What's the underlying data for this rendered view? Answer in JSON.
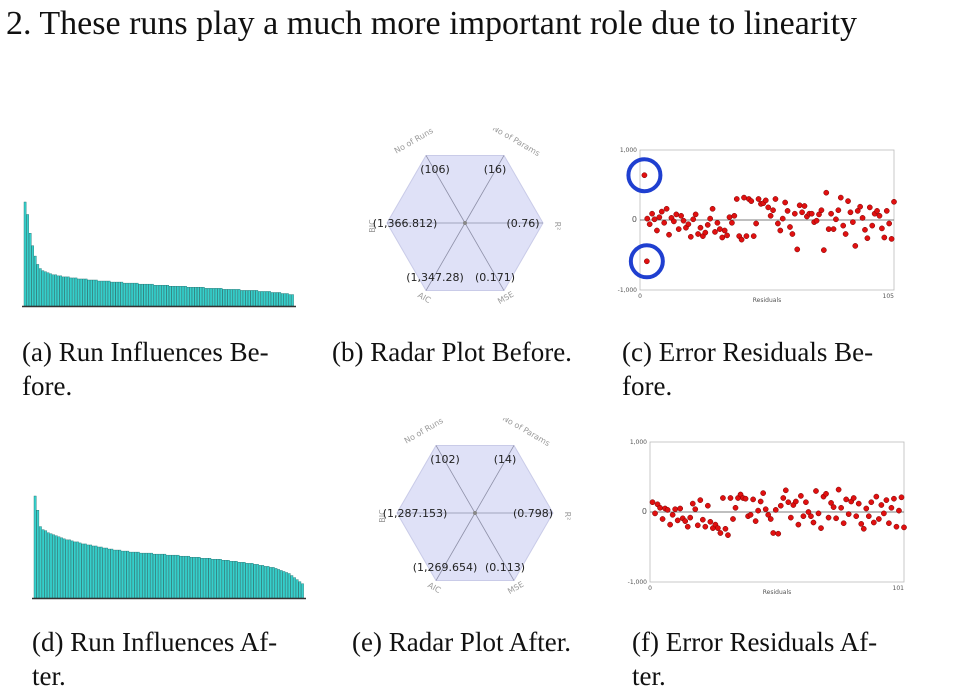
{
  "heading": "2.  These runs play a much more important role due to linearity",
  "captions": {
    "a": [
      "(a) Run Influences Be-",
      "fore."
    ],
    "b": [
      "(b) Radar Plot Before."
    ],
    "c": [
      "(c) Error Residuals Be-",
      "fore."
    ],
    "d": [
      "(d) Run Influences Af-",
      "ter."
    ],
    "e": [
      "(e) Radar Plot After."
    ],
    "f": [
      "(f) Error Residuals Af-",
      "ter."
    ]
  },
  "chart_data": [
    {
      "id": "a",
      "type": "bar",
      "color": "#36d0cc",
      "values": [
        100,
        88,
        70,
        58,
        48,
        40,
        36,
        34,
        33,
        32,
        31,
        30,
        30,
        29,
        29,
        28,
        28,
        28,
        27,
        27,
        27,
        26,
        26,
        26,
        26,
        25,
        25,
        25,
        25,
        24,
        24,
        24,
        24,
        24,
        23,
        23,
        23,
        23,
        23,
        22,
        22,
        22,
        22,
        22,
        22,
        21,
        21,
        21,
        21,
        21,
        21,
        20,
        20,
        20,
        20,
        20,
        20,
        19,
        19,
        19,
        19,
        19,
        19,
        19,
        18,
        18,
        18,
        18,
        18,
        18,
        18,
        17,
        17,
        17,
        17,
        17,
        17,
        17,
        16,
        16,
        16,
        16,
        16,
        16,
        16,
        15,
        15,
        15,
        15,
        15,
        15,
        15,
        14,
        14,
        14,
        14,
        14,
        13,
        13,
        13,
        13,
        12,
        12,
        12,
        11,
        11
      ]
    },
    {
      "id": "b",
      "type": "radar",
      "spokes": [
        "No of Runs",
        "No of Params",
        "R²",
        "MSE",
        "AIC",
        "BIC"
      ],
      "value_labels": [
        "(106)",
        "(16)",
        "(0.76)",
        "(0.171)",
        "(1,347.28)",
        "(1,366.812)"
      ],
      "values": [
        106,
        16,
        0.76,
        0.171,
        1347.28,
        1366.812
      ]
    },
    {
      "id": "c",
      "type": "scatter",
      "xlabel": "Residuals",
      "xlim": [
        0,
        105
      ],
      "ylim": [
        -1000,
        1000
      ],
      "ytick_labels": [
        "1,000",
        "0",
        "-1,000"
      ],
      "xtick_labels": [
        "0",
        "105"
      ],
      "highlight_color": "#1f3fd0",
      "outliers": [
        {
          "x": 1,
          "y": 640
        },
        {
          "x": 2,
          "y": -590
        }
      ],
      "points": [
        [
          3,
          20
        ],
        [
          4,
          -60
        ],
        [
          5,
          90
        ],
        [
          6,
          10
        ],
        [
          7,
          -150
        ],
        [
          8,
          40
        ],
        [
          9,
          120
        ],
        [
          10,
          -40
        ],
        [
          11,
          160
        ],
        [
          12,
          -210
        ],
        [
          13,
          30
        ],
        [
          14,
          -20
        ],
        [
          15,
          80
        ],
        [
          16,
          -130
        ],
        [
          17,
          60
        ],
        [
          18,
          -10
        ],
        [
          19,
          -110
        ],
        [
          20,
          -60
        ],
        [
          21,
          -240
        ],
        [
          22,
          10
        ],
        [
          23,
          80
        ],
        [
          24,
          -200
        ],
        [
          25,
          -110
        ],
        [
          26,
          -230
        ],
        [
          27,
          -180
        ],
        [
          28,
          -70
        ],
        [
          29,
          20
        ],
        [
          30,
          160
        ],
        [
          31,
          -170
        ],
        [
          32,
          -40
        ],
        [
          33,
          -130
        ],
        [
          34,
          -250
        ],
        [
          35,
          -150
        ],
        [
          36,
          -220
        ],
        [
          37,
          40
        ],
        [
          38,
          -40
        ],
        [
          39,
          60
        ],
        [
          40,
          300
        ],
        [
          41,
          -230
        ],
        [
          42,
          -280
        ],
        [
          43,
          320
        ],
        [
          44,
          -230
        ],
        [
          45,
          300
        ],
        [
          46,
          270
        ],
        [
          47,
          -230
        ],
        [
          48,
          -50
        ],
        [
          49,
          300
        ],
        [
          50,
          230
        ],
        [
          51,
          240
        ],
        [
          52,
          280
        ],
        [
          53,
          180
        ],
        [
          54,
          60
        ],
        [
          55,
          140
        ],
        [
          56,
          300
        ],
        [
          57,
          -50
        ],
        [
          58,
          -150
        ],
        [
          59,
          20
        ],
        [
          60,
          250
        ],
        [
          61,
          130
        ],
        [
          62,
          -100
        ],
        [
          63,
          -200
        ],
        [
          64,
          90
        ],
        [
          65,
          -420
        ],
        [
          66,
          210
        ],
        [
          67,
          110
        ],
        [
          68,
          200
        ],
        [
          69,
          50
        ],
        [
          70,
          90
        ],
        [
          71,
          90
        ],
        [
          72,
          -30
        ],
        [
          73,
          -10
        ],
        [
          74,
          80
        ],
        [
          75,
          140
        ],
        [
          76,
          -430
        ],
        [
          77,
          390
        ],
        [
          78,
          -130
        ],
        [
          79,
          90
        ],
        [
          80,
          -130
        ],
        [
          81,
          10
        ],
        [
          82,
          140
        ],
        [
          83,
          320
        ],
        [
          84,
          -80
        ],
        [
          85,
          -200
        ],
        [
          86,
          270
        ],
        [
          87,
          110
        ],
        [
          88,
          -30
        ],
        [
          89,
          -370
        ],
        [
          90,
          130
        ],
        [
          91,
          190
        ],
        [
          92,
          30
        ],
        [
          93,
          -140
        ],
        [
          94,
          -260
        ],
        [
          95,
          180
        ],
        [
          96,
          -80
        ],
        [
          97,
          90
        ],
        [
          98,
          130
        ],
        [
          99,
          60
        ],
        [
          100,
          -120
        ],
        [
          101,
          -250
        ],
        [
          102,
          130
        ],
        [
          103,
          -50
        ],
        [
          104,
          -270
        ],
        [
          105,
          260
        ]
      ]
    },
    {
      "id": "d",
      "type": "bar",
      "color": "#36d0cc",
      "values": [
        100,
        86,
        70,
        67,
        66,
        64,
        63,
        62,
        61,
        60,
        59,
        58,
        57,
        57,
        56,
        55,
        55,
        54,
        53,
        53,
        52,
        52,
        51,
        51,
        50,
        50,
        49,
        49,
        48,
        48,
        47,
        47,
        47,
        46,
        46,
        46,
        45,
        45,
        45,
        45,
        44,
        44,
        44,
        44,
        44,
        43,
        43,
        43,
        43,
        43,
        42,
        42,
        42,
        42,
        42,
        41,
        41,
        41,
        41,
        40,
        40,
        40,
        40,
        39,
        39,
        39,
        39,
        38,
        38,
        38,
        38,
        37,
        37,
        37,
        36,
        36,
        36,
        35,
        35,
        35,
        34,
        34,
        34,
        33,
        33,
        32,
        32,
        31,
        31,
        30,
        30,
        29,
        28,
        27,
        26,
        25,
        24,
        22,
        20,
        18,
        16,
        14
      ]
    },
    {
      "id": "e",
      "type": "radar",
      "spokes": [
        "No of Runs",
        "No of Params",
        "R²",
        "MSE",
        "AIC",
        "BIC"
      ],
      "value_labels": [
        "(102)",
        "(14)",
        "(0.798)",
        "(0.113)",
        "(1,269.654)",
        "(1,287.153)"
      ],
      "values": [
        102,
        14,
        0.798,
        0.113,
        1269.654,
        1287.153
      ]
    },
    {
      "id": "f",
      "type": "scatter",
      "xlabel": "Residuals",
      "xlim": [
        0,
        101
      ],
      "ylim": [
        -1000,
        1000
      ],
      "ytick_labels": [
        "1,000",
        "0",
        "-1,000"
      ],
      "xtick_labels": [
        "0",
        "101"
      ],
      "points": [
        [
          1,
          140
        ],
        [
          2,
          -20
        ],
        [
          3,
          110
        ],
        [
          4,
          60
        ],
        [
          5,
          -100
        ],
        [
          6,
          50
        ],
        [
          7,
          30
        ],
        [
          8,
          -180
        ],
        [
          9,
          -40
        ],
        [
          10,
          40
        ],
        [
          11,
          -120
        ],
        [
          12,
          50
        ],
        [
          13,
          -90
        ],
        [
          14,
          -130
        ],
        [
          15,
          -210
        ],
        [
          16,
          -80
        ],
        [
          17,
          120
        ],
        [
          18,
          40
        ],
        [
          19,
          -190
        ],
        [
          20,
          170
        ],
        [
          21,
          -110
        ],
        [
          22,
          -210
        ],
        [
          23,
          90
        ],
        [
          24,
          -140
        ],
        [
          25,
          -230
        ],
        [
          26,
          -180
        ],
        [
          27,
          -230
        ],
        [
          28,
          -300
        ],
        [
          29,
          200
        ],
        [
          30,
          -240
        ],
        [
          31,
          -330
        ],
        [
          32,
          200
        ],
        [
          33,
          -100
        ],
        [
          34,
          60
        ],
        [
          35,
          200
        ],
        [
          36,
          250
        ],
        [
          37,
          200
        ],
        [
          38,
          190
        ],
        [
          39,
          -60
        ],
        [
          40,
          -40
        ],
        [
          41,
          180
        ],
        [
          42,
          -130
        ],
        [
          43,
          20
        ],
        [
          44,
          150
        ],
        [
          45,
          270
        ],
        [
          46,
          40
        ],
        [
          47,
          -40
        ],
        [
          48,
          -100
        ],
        [
          49,
          -300
        ],
        [
          50,
          30
        ],
        [
          51,
          -310
        ],
        [
          52,
          90
        ],
        [
          53,
          200
        ],
        [
          54,
          310
        ],
        [
          55,
          140
        ],
        [
          56,
          -80
        ],
        [
          57,
          100
        ],
        [
          58,
          150
        ],
        [
          59,
          -180
        ],
        [
          60,
          230
        ],
        [
          61,
          -60
        ],
        [
          62,
          140
        ],
        [
          63,
          0
        ],
        [
          64,
          -60
        ],
        [
          65,
          -150
        ],
        [
          66,
          300
        ],
        [
          67,
          -20
        ],
        [
          68,
          -230
        ],
        [
          69,
          220
        ],
        [
          70,
          260
        ],
        [
          71,
          -80
        ],
        [
          72,
          130
        ],
        [
          73,
          70
        ],
        [
          74,
          -90
        ],
        [
          75,
          320
        ],
        [
          76,
          60
        ],
        [
          77,
          -160
        ],
        [
          78,
          180
        ],
        [
          79,
          -30
        ],
        [
          80,
          150
        ],
        [
          81,
          200
        ],
        [
          82,
          -60
        ],
        [
          83,
          120
        ],
        [
          84,
          -170
        ],
        [
          85,
          -240
        ],
        [
          86,
          50
        ],
        [
          87,
          -60
        ],
        [
          88,
          140
        ],
        [
          89,
          -150
        ],
        [
          90,
          220
        ],
        [
          91,
          -100
        ],
        [
          92,
          100
        ],
        [
          93,
          -20
        ],
        [
          94,
          170
        ],
        [
          95,
          -160
        ],
        [
          96,
          60
        ],
        [
          97,
          190
        ],
        [
          98,
          -210
        ],
        [
          99,
          20
        ],
        [
          100,
          210
        ],
        [
          101,
          -220
        ]
      ]
    }
  ]
}
